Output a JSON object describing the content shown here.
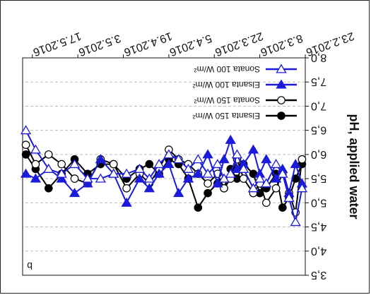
{
  "chart_data": {
    "type": "line",
    "orientation": "rotated-180",
    "panel_label": "b",
    "ylabel": "pH, applied water",
    "ylim": [
      3.5,
      8.0
    ],
    "y_ticks": [
      "3,5",
      "4,0",
      "4,5",
      "5,0",
      "5,5",
      "6,0",
      "6,5",
      "7,0",
      "7,5",
      "8,0"
    ],
    "x_ticks": [
      "23.2.2016",
      "8.3.2016",
      "22.3.2016",
      "5.4.2016",
      "19.4.2016",
      "3.5.2016",
      "17.5.2016"
    ],
    "x_start": "2016-02-23",
    "x_end": "2016-05-20",
    "grid": "horizontal dashed",
    "series": [
      {
        "name": "Elsanta 150 W/m²",
        "color": "#000000",
        "marker": "filled-circle",
        "x": [
          "2016-02-24",
          "2016-02-26",
          "2016-02-28",
          "2016-03-01",
          "2016-03-03",
          "2016-03-06",
          "2016-03-08",
          "2016-03-10",
          "2016-03-13",
          "2016-03-15",
          "2016-03-17",
          "2016-03-19",
          "2016-03-21",
          "2016-03-24",
          "2016-03-27",
          "2016-03-30",
          "2016-04-02",
          "2016-04-05",
          "2016-04-08",
          "2016-04-11",
          "2016-04-14",
          "2016-04-18",
          "2016-04-22",
          "2016-04-26",
          "2016-04-30",
          "2016-05-04",
          "2016-05-08",
          "2016-05-12",
          "2016-05-16",
          "2016-05-19"
        ],
        "values": [
          5.8,
          5.5,
          5.1,
          4.9,
          5.6,
          5.3,
          5.2,
          5.6,
          5.8,
          5.5,
          5.7,
          5.3,
          5.4,
          5.2,
          4.9,
          5.5,
          5.8,
          5.9,
          5.6,
          5.8,
          5.7,
          5.5,
          5.8,
          5.8,
          5.6,
          5.9,
          5.6,
          5.3,
          5.7,
          6.0
        ]
      },
      {
        "name": "Sonata 150 W/m²",
        "color": "#000000",
        "marker": "open-circle",
        "x": [
          "2016-02-24",
          "2016-02-26",
          "2016-02-28",
          "2016-03-01",
          "2016-03-03",
          "2016-03-06",
          "2016-03-08",
          "2016-03-10",
          "2016-03-13",
          "2016-03-15",
          "2016-03-17",
          "2016-03-19",
          "2016-03-21",
          "2016-03-24",
          "2016-03-27",
          "2016-03-30",
          "2016-04-02",
          "2016-04-05",
          "2016-04-08",
          "2016-04-11",
          "2016-04-14",
          "2016-04-18",
          "2016-04-22",
          "2016-04-26",
          "2016-04-30",
          "2016-05-04",
          "2016-05-08",
          "2016-05-12",
          "2016-05-16",
          "2016-05-19"
        ],
        "values": [
          5.9,
          4.8,
          5.2,
          5.6,
          5.3,
          5.0,
          5.4,
          5.2,
          5.5,
          5.9,
          5.5,
          5.3,
          5.6,
          5.4,
          5.6,
          5.8,
          5.9,
          6.1,
          5.7,
          5.4,
          5.6,
          5.3,
          5.8,
          5.9,
          5.4,
          5.5,
          5.8,
          6.0,
          5.8,
          6.2
        ]
      },
      {
        "name": "Elsanta 100 W/m²",
        "color": "#1a1adb",
        "marker": "filled-triangle-down",
        "x": [
          "2016-02-24",
          "2016-02-26",
          "2016-02-28",
          "2016-03-01",
          "2016-03-03",
          "2016-03-06",
          "2016-03-08",
          "2016-03-10",
          "2016-03-13",
          "2016-03-15",
          "2016-03-17",
          "2016-03-19",
          "2016-03-21",
          "2016-03-24",
          "2016-03-27",
          "2016-03-30",
          "2016-04-02",
          "2016-04-05",
          "2016-04-08",
          "2016-04-11",
          "2016-04-14",
          "2016-04-18",
          "2016-04-22",
          "2016-04-26",
          "2016-04-30",
          "2016-05-04",
          "2016-05-08",
          "2016-05-12",
          "2016-05-16",
          "2016-05-19"
        ],
        "values": [
          5.4,
          5.8,
          5.2,
          5.7,
          5.5,
          5.9,
          5.6,
          6.1,
          5.8,
          5.7,
          6.3,
          5.9,
          5.4,
          6.0,
          5.6,
          5.5,
          5.2,
          5.8,
          5.6,
          5.3,
          5.5,
          5.0,
          5.6,
          5.9,
          5.4,
          5.2,
          5.5,
          5.7,
          5.5,
          5.6
        ]
      },
      {
        "name": "Sonata 100 W/m²",
        "color": "#1a1adb",
        "marker": "open-triangle-down",
        "x": [
          "2016-02-24",
          "2016-02-26",
          "2016-02-28",
          "2016-03-01",
          "2016-03-03",
          "2016-03-06",
          "2016-03-08",
          "2016-03-10",
          "2016-03-13",
          "2016-03-15",
          "2016-03-17",
          "2016-03-19",
          "2016-03-21",
          "2016-03-24",
          "2016-03-27",
          "2016-03-30",
          "2016-04-02",
          "2016-04-05",
          "2016-04-08",
          "2016-04-11",
          "2016-04-14",
          "2016-04-18",
          "2016-04-22",
          "2016-04-26",
          "2016-04-30",
          "2016-05-04",
          "2016-05-08",
          "2016-05-12",
          "2016-05-16",
          "2016-05-19"
        ],
        "values": [
          5.3,
          4.6,
          5.1,
          5.6,
          5.8,
          5.4,
          5.5,
          5.3,
          5.7,
          6.0,
          5.6,
          5.5,
          5.8,
          5.6,
          5.9,
          5.7,
          5.9,
          6.0,
          5.8,
          5.5,
          5.7,
          5.6,
          5.6,
          5.5,
          5.5,
          5.8,
          5.6,
          5.7,
          6.1,
          6.5
        ]
      }
    ]
  }
}
